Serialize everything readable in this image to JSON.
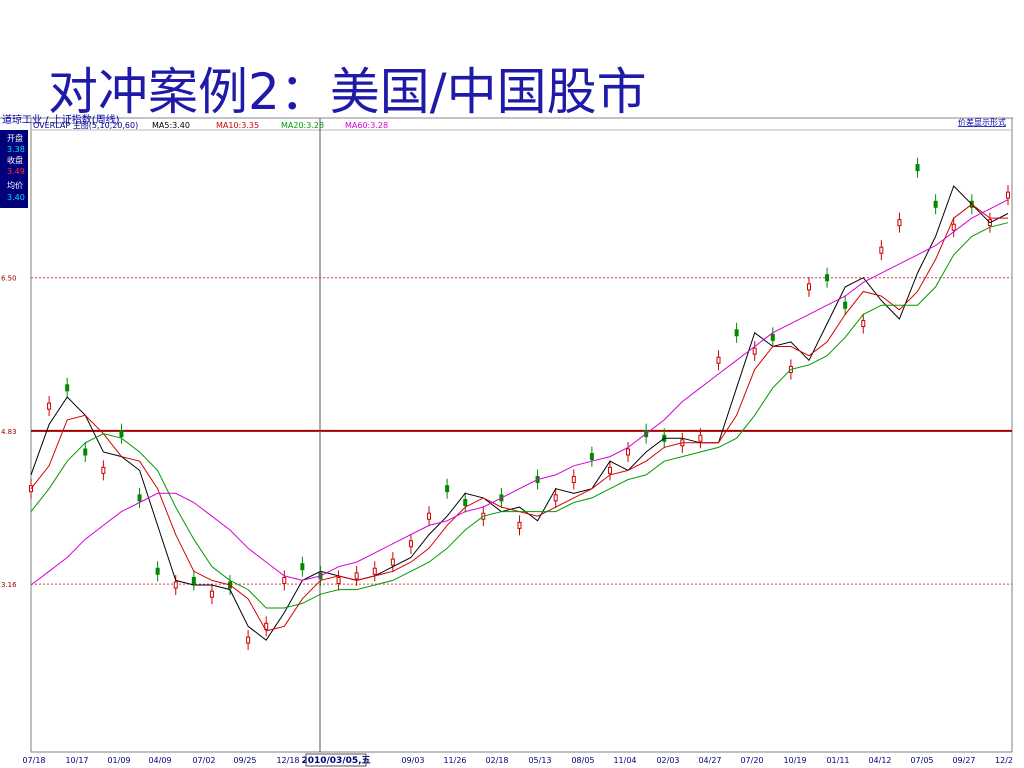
{
  "slide": {
    "title": "对冲案例2：美国/中国股市"
  },
  "chart_data": {
    "type": "line",
    "header": {
      "breadcrumb": "道琼工业 / 上证指数(周线)",
      "link": "价差显示形式"
    },
    "legend": [
      {
        "label": "OVERLAP 主图(5,10,20,60)",
        "color": "#00007f"
      },
      {
        "label": "MA5:3.40",
        "color": "#000000"
      },
      {
        "label": "MA10:3.35",
        "color": "#d40000"
      },
      {
        "label": "MA20:3.28",
        "color": "#009900"
      },
      {
        "label": "MA60:3.28",
        "color": "#d600d6"
      }
    ],
    "info_box": [
      {
        "label": "开盘",
        "value": "3.38"
      },
      {
        "label": "收盘",
        "value": "3.49"
      },
      {
        "label": "均价",
        "value": "3.40"
      }
    ],
    "y_ticks": [
      {
        "value": 6.5,
        "label": "6.50"
      },
      {
        "value": 4.83,
        "label": "4.83"
      },
      {
        "value": 3.16,
        "label": "3.16"
      }
    ],
    "ylim": [
      1.33,
      8.11
    ],
    "x_ticks": [
      "07/18",
      "10/17",
      "01/09",
      "04/09",
      "07/02",
      "09/25",
      "12/18",
      "2010/03/05,五",
      "09/03",
      "11/26",
      "02/18",
      "05/13",
      "08/05",
      "11/04",
      "02/03",
      "04/27",
      "07/20",
      "10/19",
      "01/11",
      "04/12",
      "07/05",
      "09/27",
      "12/2"
    ],
    "cursor_label": "2010/03/05,五",
    "horizontal_line": 4.83,
    "series": [
      {
        "name": "MA5",
        "color": "#000000",
        "values": [
          4.35,
          4.9,
          5.2,
          5.0,
          4.6,
          4.55,
          4.4,
          3.8,
          3.2,
          3.15,
          3.15,
          3.1,
          2.7,
          2.55,
          2.85,
          3.2,
          3.3,
          3.25,
          3.2,
          3.25,
          3.35,
          3.45,
          3.7,
          3.9,
          4.15,
          4.1,
          3.95,
          4.0,
          3.85,
          4.2,
          4.15,
          4.2,
          4.5,
          4.4,
          4.6,
          4.75,
          4.75,
          4.7,
          4.7,
          5.3,
          5.9,
          5.75,
          5.8,
          5.6,
          6.0,
          6.4,
          6.5,
          6.25,
          6.05,
          6.55,
          6.95,
          7.5,
          7.3,
          7.1,
          7.2
        ]
      },
      {
        "name": "MA10",
        "color": "#d40000",
        "values": [
          4.2,
          4.45,
          4.95,
          5.0,
          4.8,
          4.55,
          4.5,
          4.2,
          3.7,
          3.3,
          3.2,
          3.15,
          3.0,
          2.65,
          2.7,
          3.0,
          3.2,
          3.25,
          3.2,
          3.25,
          3.3,
          3.4,
          3.55,
          3.8,
          4.0,
          4.1,
          4.0,
          3.95,
          3.9,
          4.0,
          4.1,
          4.2,
          4.35,
          4.4,
          4.5,
          4.65,
          4.7,
          4.7,
          4.7,
          5.0,
          5.5,
          5.75,
          5.75,
          5.65,
          5.8,
          6.1,
          6.35,
          6.3,
          6.15,
          6.35,
          6.7,
          7.15,
          7.3,
          7.15,
          7.15
        ]
      },
      {
        "name": "MA20",
        "color": "#009900",
        "values": [
          3.95,
          4.2,
          4.5,
          4.7,
          4.8,
          4.75,
          4.6,
          4.4,
          4.0,
          3.65,
          3.35,
          3.2,
          3.1,
          2.9,
          2.9,
          2.95,
          3.05,
          3.1,
          3.1,
          3.15,
          3.2,
          3.3,
          3.4,
          3.55,
          3.75,
          3.9,
          3.95,
          3.95,
          3.95,
          3.95,
          4.05,
          4.1,
          4.2,
          4.3,
          4.35,
          4.5,
          4.55,
          4.6,
          4.65,
          4.75,
          5.0,
          5.3,
          5.5,
          5.55,
          5.65,
          5.85,
          6.1,
          6.2,
          6.2,
          6.2,
          6.4,
          6.75,
          6.95,
          7.05,
          7.1
        ]
      },
      {
        "name": "MA60",
        "color": "#d600d6",
        "values": [
          3.15,
          3.3,
          3.45,
          3.65,
          3.8,
          3.95,
          4.05,
          4.15,
          4.15,
          4.05,
          3.9,
          3.75,
          3.55,
          3.4,
          3.25,
          3.2,
          3.25,
          3.35,
          3.4,
          3.5,
          3.6,
          3.7,
          3.8,
          3.85,
          3.95,
          4.0,
          4.1,
          4.2,
          4.3,
          4.35,
          4.45,
          4.5,
          4.55,
          4.65,
          4.8,
          4.95,
          5.15,
          5.3,
          5.45,
          5.6,
          5.75,
          5.9,
          6.0,
          6.1,
          6.2,
          6.3,
          6.45,
          6.55,
          6.65,
          6.75,
          6.85,
          7.0,
          7.15,
          7.25,
          7.35
        ]
      },
      {
        "name": "Price",
        "color": "#cc0000",
        "values": [
          4.2,
          5.1,
          5.3,
          4.6,
          4.4,
          4.8,
          4.1,
          3.3,
          3.15,
          3.2,
          3.05,
          3.15,
          2.55,
          2.7,
          3.2,
          3.35,
          3.25,
          3.2,
          3.25,
          3.3,
          3.4,
          3.6,
          3.9,
          4.2,
          4.05,
          3.9,
          4.1,
          3.8,
          4.3,
          4.1,
          4.3,
          4.55,
          4.4,
          4.6,
          4.8,
          4.75,
          4.7,
          4.75,
          5.6,
          5.9,
          5.7,
          5.85,
          5.5,
          6.4,
          6.5,
          6.2,
          6.0,
          6.8,
          7.1,
          7.7,
          7.3,
          7.05,
          7.3,
          7.1,
          7.4
        ]
      }
    ]
  }
}
